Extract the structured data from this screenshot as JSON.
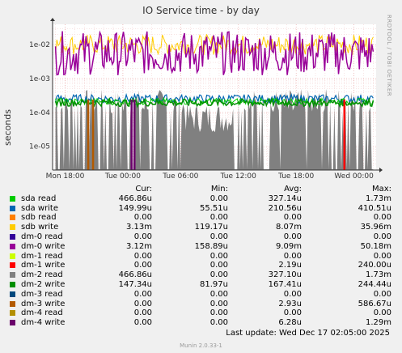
{
  "title": "IO Service time - by day",
  "side_text": "RRDTOOL / TOBI OETIKER",
  "footer": {
    "last_update": "Last update:  Wed Dec 17 02:05:00 2025",
    "munin": "Munin 2.0.33-1"
  },
  "legend_headers": [
    "Cur:",
    "Min:",
    "Avg:",
    "Max:"
  ],
  "chart_data": {
    "type": "line",
    "ylabel": "seconds",
    "yscale": "log",
    "ylim": [
      2e-06,
      0.04
    ],
    "ytick_labels": [
      "1e-05",
      "1e-04",
      "1e-03",
      "1e-02"
    ],
    "ytick_values": [
      1e-05,
      0.0001,
      0.001,
      0.01
    ],
    "xtick_labels": [
      "Mon 18:00",
      "Tue 00:00",
      "Tue 06:00",
      "Tue 12:00",
      "Tue 18:00",
      "Wed 00:00"
    ],
    "xtick_hours": [
      0,
      6,
      12,
      18,
      24,
      30
    ],
    "x_range_hours": [
      -1.3,
      32.3
    ],
    "grid": true,
    "series": [
      {
        "name": "sda read",
        "color": "#00cc00",
        "cur": "466.86u",
        "min": "0.00",
        "avg": "327.14u",
        "max": "1.73m"
      },
      {
        "name": "sda write",
        "color": "#0066b3",
        "cur": "149.99u",
        "min": "55.51u",
        "avg": "210.56u",
        "max": "410.51u"
      },
      {
        "name": "sdb read",
        "color": "#ff8000",
        "cur": "0.00",
        "min": "0.00",
        "avg": "0.00",
        "max": "0.00"
      },
      {
        "name": "sdb write",
        "color": "#ffcc00",
        "cur": "3.13m",
        "min": "119.17u",
        "avg": "8.07m",
        "max": "35.96m"
      },
      {
        "name": "dm-0 read",
        "color": "#330099",
        "cur": "0.00",
        "min": "0.00",
        "avg": "0.00",
        "max": "0.00"
      },
      {
        "name": "dm-0 write",
        "color": "#990099",
        "cur": "3.12m",
        "min": "158.89u",
        "avg": "9.09m",
        "max": "50.18m"
      },
      {
        "name": "dm-1 read",
        "color": "#ccff00",
        "cur": "0.00",
        "min": "0.00",
        "avg": "0.00",
        "max": "0.00"
      },
      {
        "name": "dm-1 write",
        "color": "#ff0000",
        "cur": "0.00",
        "min": "0.00",
        "avg": "2.19u",
        "max": "240.00u"
      },
      {
        "name": "dm-2 read",
        "color": "#808080",
        "cur": "466.86u",
        "min": "0.00",
        "avg": "327.10u",
        "max": "1.73m"
      },
      {
        "name": "dm-2 write",
        "color": "#008f00",
        "cur": "147.34u",
        "min": "81.97u",
        "avg": "167.41u",
        "max": "244.44u"
      },
      {
        "name": "dm-3 read",
        "color": "#00487d",
        "cur": "0.00",
        "min": "0.00",
        "avg": "0.00",
        "max": "0.00"
      },
      {
        "name": "dm-3 write",
        "color": "#b35a00",
        "cur": "0.00",
        "min": "0.00",
        "avg": "2.93u",
        "max": "586.67u"
      },
      {
        "name": "dm-4 read",
        "color": "#b38f00",
        "cur": "0.00",
        "min": "0.00",
        "avg": "0.00",
        "max": "0.00"
      },
      {
        "name": "dm-4 write",
        "color": "#6b006b",
        "cur": "0.00",
        "min": "0.00",
        "avg": "6.28u",
        "max": "1.29m"
      }
    ]
  }
}
